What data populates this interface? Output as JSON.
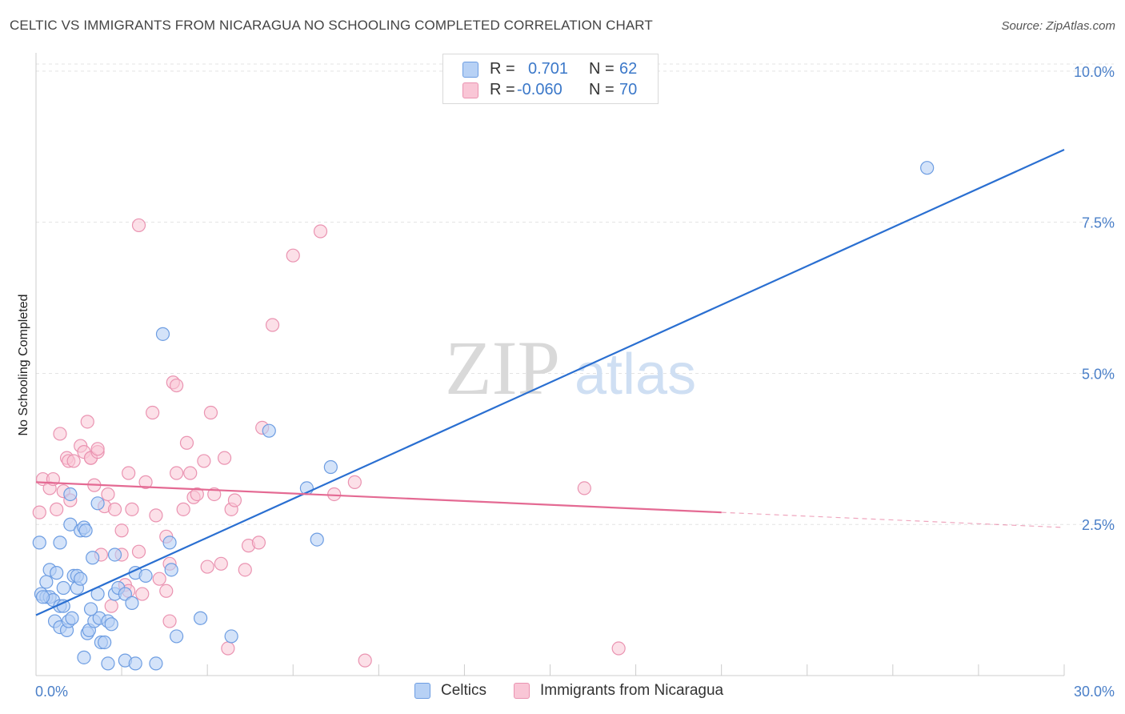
{
  "title": "CELTIC VS IMMIGRANTS FROM NICARAGUA NO SCHOOLING COMPLETED CORRELATION CHART",
  "source": "Source: ZipAtlas.com",
  "watermark": {
    "zip": "ZIP",
    "atlas": "atlas"
  },
  "stats": {
    "rows": [
      {
        "r_label": "R =",
        "r_value": "0.701",
        "n_label": "N =",
        "n_value": "62"
      },
      {
        "r_label": "R =",
        "r_value": "-0.060",
        "n_label": "N =",
        "n_value": "70"
      }
    ]
  },
  "legend": {
    "celtics": "Celtics",
    "nicaragua": "Immigrants from Nicaragua"
  },
  "chart_data": {
    "type": "scatter",
    "title": "CELTIC VS IMMIGRANTS FROM NICARAGUA NO SCHOOLING COMPLETED CORRELATION CHART",
    "xlabel": "",
    "ylabel": "No Schooling Completed",
    "xlim": [
      0,
      30
    ],
    "ylim": [
      0,
      10.25
    ],
    "x_tick_labels": [
      "0.0%",
      "30.0%"
    ],
    "y_ticks": [
      2.5,
      5.0,
      7.5,
      10.0
    ],
    "y_tick_labels": [
      "2.5%",
      "5.0%",
      "7.5%",
      "10.0%"
    ],
    "legend_position": "bottom-center",
    "colors": {
      "celtics": "#6d9de2",
      "celtics_fill": "#b7d1f5",
      "celtics_line": "#2a6fd1",
      "nicaragua": "#ea93b1",
      "nicaragua_fill": "#f9c6d6",
      "nicaragua_line": "#e46a93"
    },
    "series": [
      {
        "name": "Celtics",
        "r": 0.701,
        "n": 62,
        "trend": {
          "x0": 0,
          "y0": 1.0,
          "x1": 30,
          "y1": 8.7
        },
        "points": [
          [
            0.1,
            2.2
          ],
          [
            0.15,
            1.35
          ],
          [
            0.3,
            1.3
          ],
          [
            0.3,
            1.55
          ],
          [
            0.4,
            1.3
          ],
          [
            0.5,
            1.25
          ],
          [
            0.4,
            1.75
          ],
          [
            0.55,
            0.9
          ],
          [
            0.6,
            1.7
          ],
          [
            0.7,
            1.15
          ],
          [
            0.7,
            2.2
          ],
          [
            0.7,
            0.8
          ],
          [
            0.8,
            1.45
          ],
          [
            0.8,
            1.15
          ],
          [
            0.9,
            0.75
          ],
          [
            0.95,
            0.9
          ],
          [
            1.0,
            2.5
          ],
          [
            1.05,
            0.95
          ],
          [
            1.1,
            1.65
          ],
          [
            1.2,
            1.45
          ],
          [
            1.2,
            1.65
          ],
          [
            1.3,
            2.4
          ],
          [
            1.3,
            1.6
          ],
          [
            1.4,
            2.45
          ],
          [
            1.4,
            0.3
          ],
          [
            1.45,
            2.4
          ],
          [
            1.5,
            0.7
          ],
          [
            1.55,
            0.75
          ],
          [
            1.65,
            1.95
          ],
          [
            1.7,
            0.9
          ],
          [
            1.8,
            2.85
          ],
          [
            1.8,
            1.35
          ],
          [
            1.85,
            0.95
          ],
          [
            1.9,
            0.55
          ],
          [
            2.0,
            0.55
          ],
          [
            2.1,
            0.2
          ],
          [
            2.1,
            0.9
          ],
          [
            2.3,
            1.35
          ],
          [
            2.3,
            2.0
          ],
          [
            2.4,
            1.45
          ],
          [
            2.6,
            1.35
          ],
          [
            2.6,
            0.25
          ],
          [
            2.9,
            0.2
          ],
          [
            2.9,
            1.7
          ],
          [
            3.2,
            1.65
          ],
          [
            3.7,
            5.65
          ],
          [
            3.9,
            2.2
          ],
          [
            3.95,
            1.75
          ],
          [
            4.1,
            0.65
          ],
          [
            5.7,
            0.65
          ],
          [
            6.8,
            4.05
          ],
          [
            7.9,
            3.1
          ],
          [
            8.2,
            2.25
          ],
          [
            8.6,
            3.45
          ],
          [
            26.0,
            8.4
          ],
          [
            3.5,
            0.2
          ],
          [
            1.0,
            3.0
          ],
          [
            2.8,
            1.2
          ],
          [
            1.6,
            1.1
          ],
          [
            0.2,
            1.3
          ],
          [
            2.2,
            0.85
          ],
          [
            4.8,
            0.95
          ]
        ]
      },
      {
        "name": "Immigrants from Nicaragua",
        "r": -0.06,
        "n": 70,
        "trend": {
          "x0": 0,
          "y0": 3.2,
          "x1": 20,
          "y1": 2.7,
          "dash_to_x": 30,
          "dash_to_y": 2.45
        },
        "points": [
          [
            0.1,
            2.7
          ],
          [
            0.2,
            3.25
          ],
          [
            0.4,
            3.1
          ],
          [
            0.5,
            3.25
          ],
          [
            0.6,
            2.75
          ],
          [
            0.7,
            4.0
          ],
          [
            0.8,
            3.05
          ],
          [
            0.9,
            3.6
          ],
          [
            0.95,
            3.55
          ],
          [
            1.0,
            2.9
          ],
          [
            1.1,
            3.55
          ],
          [
            1.3,
            3.8
          ],
          [
            1.4,
            3.7
          ],
          [
            1.5,
            4.2
          ],
          [
            1.6,
            3.6
          ],
          [
            1.6,
            3.6
          ],
          [
            1.7,
            3.15
          ],
          [
            1.8,
            3.7
          ],
          [
            1.8,
            3.75
          ],
          [
            1.9,
            2.0
          ],
          [
            2.0,
            2.8
          ],
          [
            2.1,
            3.0
          ],
          [
            2.2,
            1.15
          ],
          [
            2.3,
            2.75
          ],
          [
            2.5,
            2.4
          ],
          [
            2.5,
            2.0
          ],
          [
            2.6,
            1.5
          ],
          [
            2.7,
            3.35
          ],
          [
            2.7,
            1.4
          ],
          [
            2.8,
            2.75
          ],
          [
            3.0,
            2.05
          ],
          [
            3.0,
            7.45
          ],
          [
            3.1,
            1.35
          ],
          [
            3.2,
            3.2
          ],
          [
            3.4,
            4.35
          ],
          [
            3.5,
            2.65
          ],
          [
            3.6,
            1.6
          ],
          [
            3.8,
            2.3
          ],
          [
            3.8,
            1.4
          ],
          [
            3.9,
            0.9
          ],
          [
            3.9,
            1.85
          ],
          [
            4.0,
            4.85
          ],
          [
            4.1,
            4.8
          ],
          [
            4.1,
            3.35
          ],
          [
            4.3,
            2.75
          ],
          [
            4.4,
            3.85
          ],
          [
            4.5,
            3.35
          ],
          [
            4.6,
            2.95
          ],
          [
            4.7,
            3.0
          ],
          [
            4.9,
            3.55
          ],
          [
            5.0,
            1.8
          ],
          [
            5.1,
            4.35
          ],
          [
            5.2,
            3.0
          ],
          [
            5.4,
            1.85
          ],
          [
            5.5,
            3.6
          ],
          [
            5.6,
            0.45
          ],
          [
            5.7,
            2.75
          ],
          [
            5.8,
            2.9
          ],
          [
            6.1,
            1.75
          ],
          [
            6.2,
            2.15
          ],
          [
            6.5,
            2.2
          ],
          [
            6.6,
            4.1
          ],
          [
            6.9,
            5.8
          ],
          [
            7.5,
            6.95
          ],
          [
            8.3,
            7.35
          ],
          [
            8.7,
            3.0
          ],
          [
            9.3,
            3.2
          ],
          [
            9.6,
            0.25
          ],
          [
            16.0,
            3.1
          ],
          [
            17.0,
            0.45
          ]
        ]
      }
    ]
  }
}
